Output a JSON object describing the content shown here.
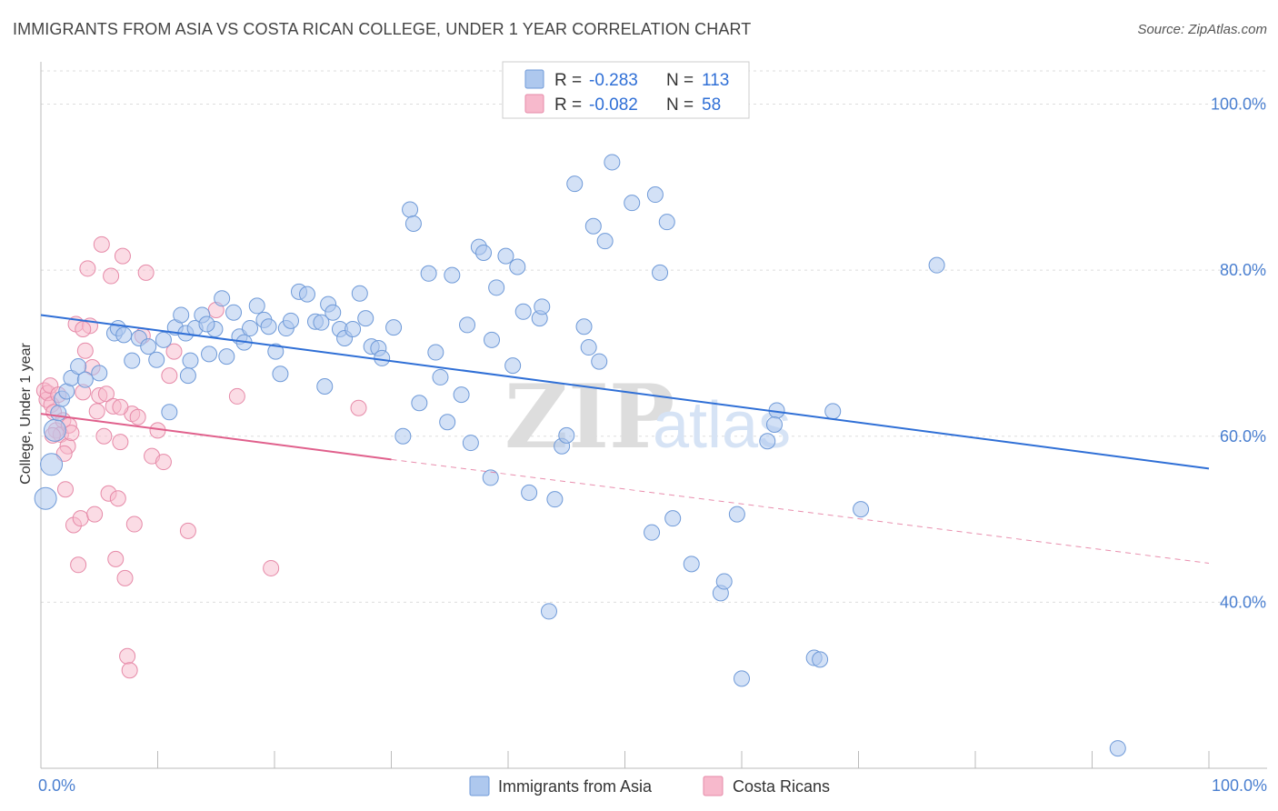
{
  "title": "IMMIGRANTS FROM ASIA VS COSTA RICAN COLLEGE, UNDER 1 YEAR CORRELATION CHART",
  "source": "Source: ZipAtlas.com",
  "watermark": {
    "zip": "ZIP",
    "atlas": "atlas"
  },
  "colors": {
    "blue_fill": "#aec8ee",
    "blue_stroke": "#6f9ad8",
    "blue_line": "#2f6fd6",
    "pink_fill": "#f7b9cc",
    "pink_stroke": "#e68aa8",
    "pink_line": "#e0608c",
    "grid": "#dddddd",
    "tick_text": "#4a7fd0"
  },
  "legend": {
    "rows": [
      {
        "r_label": "R = ",
        "r_value": "-0.283",
        "n_label": "N = ",
        "n_value": "113"
      },
      {
        "r_label": "R = ",
        "r_value": "-0.082",
        "n_label": "N = ",
        "n_value": "58"
      }
    ]
  },
  "chart_data": {
    "type": "scatter",
    "title": "IMMIGRANTS FROM ASIA VS COSTA RICAN COLLEGE, UNDER 1 YEAR CORRELATION CHART",
    "xlabel": "",
    "ylabel": "College, Under 1 year",
    "xlim": [
      0,
      100
    ],
    "ylim": [
      20,
      104
    ],
    "x_tick_labels": [
      "0.0%",
      "100.0%"
    ],
    "y_ticks": [
      40,
      60,
      80,
      100
    ],
    "y_tick_labels": [
      "40.0%",
      "60.0%",
      "80.0%",
      "100.0%"
    ],
    "grid": true,
    "legend_position": "bottom",
    "series": [
      {
        "name": "Immigrants from Asia",
        "r": -0.283,
        "n": 113,
        "trend": {
          "x": [
            0,
            100
          ],
          "y": [
            74.6,
            56.1
          ],
          "dashed_from": null
        },
        "points": [
          [
            0.4,
            52.5
          ],
          [
            0.9,
            56.6
          ],
          [
            1.2,
            60.7
          ],
          [
            1.5,
            62.8
          ],
          [
            1.8,
            64.5
          ],
          [
            2.2,
            65.4
          ],
          [
            2.6,
            67.0
          ],
          [
            3.2,
            68.4
          ],
          [
            3.8,
            66.8
          ],
          [
            5.0,
            67.6
          ],
          [
            6.3,
            72.4
          ],
          [
            6.6,
            73.0
          ],
          [
            7.1,
            72.2
          ],
          [
            7.8,
            69.1
          ],
          [
            8.4,
            71.8
          ],
          [
            9.2,
            70.8
          ],
          [
            9.9,
            69.2
          ],
          [
            10.5,
            71.6
          ],
          [
            11.0,
            62.9
          ],
          [
            11.5,
            73.1
          ],
          [
            12.0,
            74.6
          ],
          [
            12.4,
            72.4
          ],
          [
            12.8,
            69.1
          ],
          [
            13.2,
            73.0
          ],
          [
            13.8,
            74.6
          ],
          [
            14.4,
            69.9
          ],
          [
            14.9,
            72.9
          ],
          [
            15.5,
            76.6
          ],
          [
            15.9,
            69.6
          ],
          [
            16.5,
            74.9
          ],
          [
            17.0,
            72.0
          ],
          [
            17.4,
            71.3
          ],
          [
            17.9,
            73.0
          ],
          [
            18.5,
            75.7
          ],
          [
            19.1,
            74.0
          ],
          [
            19.5,
            73.2
          ],
          [
            20.1,
            70.2
          ],
          [
            20.5,
            67.5
          ],
          [
            21.0,
            73.0
          ],
          [
            21.4,
            73.9
          ],
          [
            22.1,
            77.4
          ],
          [
            22.8,
            77.1
          ],
          [
            23.5,
            73.8
          ],
          [
            24.0,
            73.7
          ],
          [
            24.6,
            75.9
          ],
          [
            25.0,
            74.9
          ],
          [
            25.6,
            72.9
          ],
          [
            26.0,
            71.8
          ],
          [
            26.7,
            72.9
          ],
          [
            27.3,
            77.2
          ],
          [
            27.8,
            74.2
          ],
          [
            28.3,
            70.8
          ],
          [
            28.9,
            70.6
          ],
          [
            29.2,
            69.4
          ],
          [
            30.2,
            73.1
          ],
          [
            31.0,
            60.0
          ],
          [
            31.6,
            87.3
          ],
          [
            31.9,
            85.6
          ],
          [
            32.4,
            64.0
          ],
          [
            33.2,
            79.6
          ],
          [
            33.8,
            70.1
          ],
          [
            34.2,
            67.1
          ],
          [
            34.8,
            61.7
          ],
          [
            35.2,
            79.4
          ],
          [
            36.0,
            65.0
          ],
          [
            36.5,
            73.4
          ],
          [
            36.8,
            59.2
          ],
          [
            37.5,
            82.8
          ],
          [
            37.9,
            82.1
          ],
          [
            38.6,
            71.6
          ],
          [
            39.0,
            77.9
          ],
          [
            39.8,
            81.7
          ],
          [
            40.4,
            68.5
          ],
          [
            40.8,
            80.4
          ],
          [
            41.3,
            75.0
          ],
          [
            41.8,
            53.2
          ],
          [
            42.7,
            74.2
          ],
          [
            42.9,
            75.6
          ],
          [
            44.0,
            52.4
          ],
          [
            44.6,
            58.8
          ],
          [
            45.0,
            60.1
          ],
          [
            45.7,
            90.4
          ],
          [
            46.5,
            73.2
          ],
          [
            46.9,
            70.7
          ],
          [
            47.3,
            85.3
          ],
          [
            47.8,
            69.0
          ],
          [
            48.3,
            83.5
          ],
          [
            48.9,
            93.0
          ],
          [
            50.6,
            88.1
          ],
          [
            52.3,
            48.4
          ],
          [
            52.6,
            89.1
          ],
          [
            53.0,
            79.7
          ],
          [
            53.6,
            85.8
          ],
          [
            54.1,
            50.1
          ],
          [
            55.7,
            44.6
          ],
          [
            58.2,
            41.1
          ],
          [
            59.6,
            50.6
          ],
          [
            62.2,
            59.4
          ],
          [
            63.0,
            63.1
          ],
          [
            66.2,
            33.3
          ],
          [
            66.7,
            33.1
          ],
          [
            70.2,
            51.2
          ],
          [
            76.7,
            80.6
          ],
          [
            60.0,
            30.8
          ],
          [
            58.5,
            42.5
          ],
          [
            24.3,
            66.0
          ],
          [
            38.5,
            55.0
          ],
          [
            43.5,
            38.9
          ],
          [
            67.8,
            63.0
          ],
          [
            12.6,
            67.3
          ],
          [
            14.2,
            73.5
          ],
          [
            62.8,
            61.4
          ],
          [
            92.2,
            22.4
          ]
        ]
      },
      {
        "name": "Costa Ricans",
        "r": -0.082,
        "n": 58,
        "trend": {
          "x": [
            0,
            30,
            100
          ],
          "y": [
            62.7,
            57.2,
            44.7
          ],
          "solid_to_x": 30
        },
        "points": [
          [
            0.3,
            65.5
          ],
          [
            0.5,
            64.4
          ],
          [
            0.6,
            65.2
          ],
          [
            0.8,
            66.1
          ],
          [
            0.9,
            63.8
          ],
          [
            1.1,
            62.9
          ],
          [
            1.3,
            60.7
          ],
          [
            1.5,
            65.0
          ],
          [
            1.7,
            60.2
          ],
          [
            1.9,
            61.9
          ],
          [
            2.1,
            53.6
          ],
          [
            2.3,
            58.8
          ],
          [
            2.4,
            61.3
          ],
          [
            2.6,
            60.4
          ],
          [
            2.8,
            49.3
          ],
          [
            3.0,
            73.5
          ],
          [
            3.2,
            44.5
          ],
          [
            3.4,
            50.1
          ],
          [
            3.6,
            65.3
          ],
          [
            3.8,
            70.3
          ],
          [
            4.0,
            80.2
          ],
          [
            4.2,
            73.3
          ],
          [
            4.4,
            68.3
          ],
          [
            4.6,
            50.6
          ],
          [
            4.8,
            63.0
          ],
          [
            5.0,
            64.9
          ],
          [
            5.2,
            83.1
          ],
          [
            5.4,
            60.0
          ],
          [
            5.6,
            65.1
          ],
          [
            5.8,
            53.1
          ],
          [
            6.0,
            79.3
          ],
          [
            6.2,
            63.6
          ],
          [
            6.4,
            45.2
          ],
          [
            6.6,
            52.5
          ],
          [
            6.8,
            59.3
          ],
          [
            7.0,
            81.7
          ],
          [
            7.2,
            42.9
          ],
          [
            7.4,
            33.5
          ],
          [
            7.6,
            31.8
          ],
          [
            7.8,
            62.7
          ],
          [
            8.0,
            49.4
          ],
          [
            8.3,
            62.3
          ],
          [
            8.7,
            72.1
          ],
          [
            9.0,
            79.7
          ],
          [
            9.5,
            57.6
          ],
          [
            10.0,
            60.7
          ],
          [
            10.5,
            56.9
          ],
          [
            11.0,
            67.3
          ],
          [
            11.4,
            70.2
          ],
          [
            12.6,
            48.6
          ],
          [
            15.0,
            75.2
          ],
          [
            16.8,
            64.8
          ],
          [
            19.7,
            44.1
          ],
          [
            27.2,
            63.4
          ],
          [
            1.0,
            60.1
          ],
          [
            2.0,
            57.9
          ],
          [
            3.6,
            72.9
          ],
          [
            6.8,
            63.5
          ]
        ]
      }
    ]
  }
}
